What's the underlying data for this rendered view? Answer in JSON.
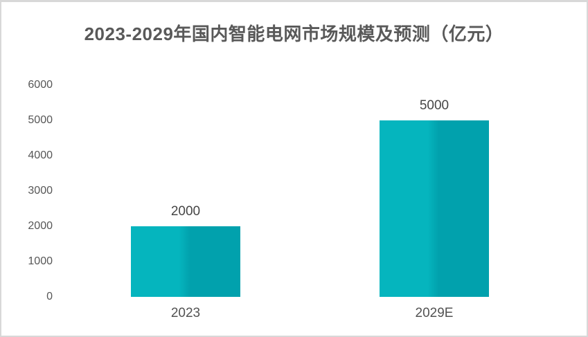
{
  "title": "2023-2029年国内智能电网市场规模及预测（亿元）",
  "colors": {
    "bar_light": "#05B5BE",
    "bar_dark": "#01A1AD",
    "title_text": "#595959",
    "axis_text": "#565656",
    "frame_border": "#D8D8D8",
    "background": "#FFFFFF"
  },
  "chart_data": {
    "type": "bar",
    "title": "2023-2029年国内智能电网市场规模及预测（亿元）",
    "categories": [
      "2023",
      "2029E"
    ],
    "values": [
      2000,
      5000
    ],
    "data_labels": [
      "2000",
      "5000"
    ],
    "xlabel": "",
    "ylabel": "",
    "ylim": [
      0,
      6000
    ],
    "yticks": [
      0,
      1000,
      2000,
      3000,
      4000,
      5000,
      6000
    ],
    "ytick_labels": [
      "0",
      "1000",
      "2000",
      "3000",
      "4000",
      "5000",
      "6000"
    ],
    "grid": false,
    "legend": false,
    "axis_lines": false,
    "bar_fill": "split light-to-dark teal, lighter left half, darker right half"
  }
}
